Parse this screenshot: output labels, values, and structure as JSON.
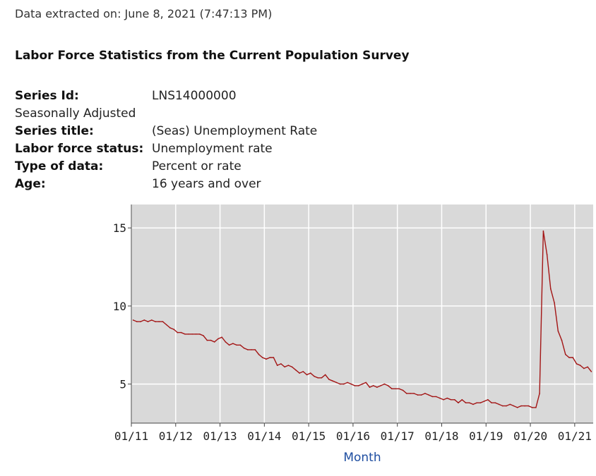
{
  "header": {
    "extracted": "Data extracted on: June 8, 2021 (7:47:13 PM)",
    "title": "Labor Force Statistics from the Current Population Survey"
  },
  "meta": {
    "series_id_label": "Series Id:",
    "series_id_value": "LNS14000000",
    "seasonal": "Seasonally Adjusted",
    "series_title_label": "Series title:",
    "series_title_value": "(Seas) Unemployment Rate",
    "lf_status_label": "Labor force status:",
    "lf_status_value": "Unemployment rate",
    "type_label": "Type of data:",
    "type_value": "Percent or rate",
    "age_label": "Age:",
    "age_value": "16 years and over"
  },
  "chart_data": {
    "type": "line",
    "xlabel": "Month",
    "ylabel": "",
    "ylim": [
      2.5,
      16.5
    ],
    "xlim": [
      "2011-01",
      "2021-05"
    ],
    "yticks": [
      5,
      10,
      15
    ],
    "xticks": [
      "01/11",
      "01/12",
      "01/13",
      "01/14",
      "01/15",
      "01/16",
      "01/17",
      "01/18",
      "01/19",
      "01/20",
      "01/21"
    ],
    "grid": true,
    "colors": {
      "line": "#a31515",
      "plot_bg": "#d9d9d9",
      "grid": "#ffffff"
    },
    "series": [
      {
        "x": [
          "2011-01",
          "2011-02",
          "2011-03",
          "2011-04",
          "2011-05",
          "2011-06",
          "2011-07",
          "2011-08",
          "2011-09",
          "2011-10",
          "2011-11",
          "2011-12",
          "2012-01",
          "2012-02",
          "2012-03",
          "2012-04",
          "2012-05",
          "2012-06",
          "2012-07",
          "2012-08",
          "2012-09",
          "2012-10",
          "2012-11",
          "2012-12",
          "2013-01",
          "2013-02",
          "2013-03",
          "2013-04",
          "2013-05",
          "2013-06",
          "2013-07",
          "2013-08",
          "2013-09",
          "2013-10",
          "2013-11",
          "2013-12",
          "2014-01",
          "2014-02",
          "2014-03",
          "2014-04",
          "2014-05",
          "2014-06",
          "2014-07",
          "2014-08",
          "2014-09",
          "2014-10",
          "2014-11",
          "2014-12",
          "2015-01",
          "2015-02",
          "2015-03",
          "2015-04",
          "2015-05",
          "2015-06",
          "2015-07",
          "2015-08",
          "2015-09",
          "2015-10",
          "2015-11",
          "2015-12",
          "2016-01",
          "2016-02",
          "2016-03",
          "2016-04",
          "2016-05",
          "2016-06",
          "2016-07",
          "2016-08",
          "2016-09",
          "2016-10",
          "2016-11",
          "2016-12",
          "2017-01",
          "2017-02",
          "2017-03",
          "2017-04",
          "2017-05",
          "2017-06",
          "2017-07",
          "2017-08",
          "2017-09",
          "2017-10",
          "2017-11",
          "2017-12",
          "2018-01",
          "2018-02",
          "2018-03",
          "2018-04",
          "2018-05",
          "2018-06",
          "2018-07",
          "2018-08",
          "2018-09",
          "2018-10",
          "2018-11",
          "2018-12",
          "2019-01",
          "2019-02",
          "2019-03",
          "2019-04",
          "2019-05",
          "2019-06",
          "2019-07",
          "2019-08",
          "2019-09",
          "2019-10",
          "2019-11",
          "2019-12",
          "2020-01",
          "2020-02",
          "2020-03",
          "2020-04",
          "2020-05",
          "2020-06",
          "2020-07",
          "2020-08",
          "2020-09",
          "2020-10",
          "2020-11",
          "2020-12",
          "2021-01",
          "2021-02",
          "2021-03",
          "2021-04",
          "2021-05"
        ],
        "values": [
          9.1,
          9.0,
          9.0,
          9.1,
          9.0,
          9.1,
          9.0,
          9.0,
          9.0,
          8.8,
          8.6,
          8.5,
          8.3,
          8.3,
          8.2,
          8.2,
          8.2,
          8.2,
          8.2,
          8.1,
          7.8,
          7.8,
          7.7,
          7.9,
          8.0,
          7.7,
          7.5,
          7.6,
          7.5,
          7.5,
          7.3,
          7.2,
          7.2,
          7.2,
          6.9,
          6.7,
          6.6,
          6.7,
          6.7,
          6.2,
          6.3,
          6.1,
          6.2,
          6.1,
          5.9,
          5.7,
          5.8,
          5.6,
          5.7,
          5.5,
          5.4,
          5.4,
          5.6,
          5.3,
          5.2,
          5.1,
          5.0,
          5.0,
          5.1,
          5.0,
          4.9,
          4.9,
          5.0,
          5.1,
          4.8,
          4.9,
          4.8,
          4.9,
          5.0,
          4.9,
          4.7,
          4.7,
          4.7,
          4.6,
          4.4,
          4.4,
          4.4,
          4.3,
          4.3,
          4.4,
          4.3,
          4.2,
          4.2,
          4.1,
          4.0,
          4.1,
          4.0,
          4.0,
          3.8,
          4.0,
          3.8,
          3.8,
          3.7,
          3.8,
          3.8,
          3.9,
          4.0,
          3.8,
          3.8,
          3.7,
          3.6,
          3.6,
          3.7,
          3.6,
          3.5,
          3.6,
          3.6,
          3.6,
          3.5,
          3.5,
          4.4,
          14.8,
          13.3,
          11.1,
          10.2,
          8.4,
          7.8,
          6.9,
          6.7,
          6.7,
          6.3,
          6.2,
          6.0,
          6.1,
          5.8
        ]
      }
    ]
  }
}
